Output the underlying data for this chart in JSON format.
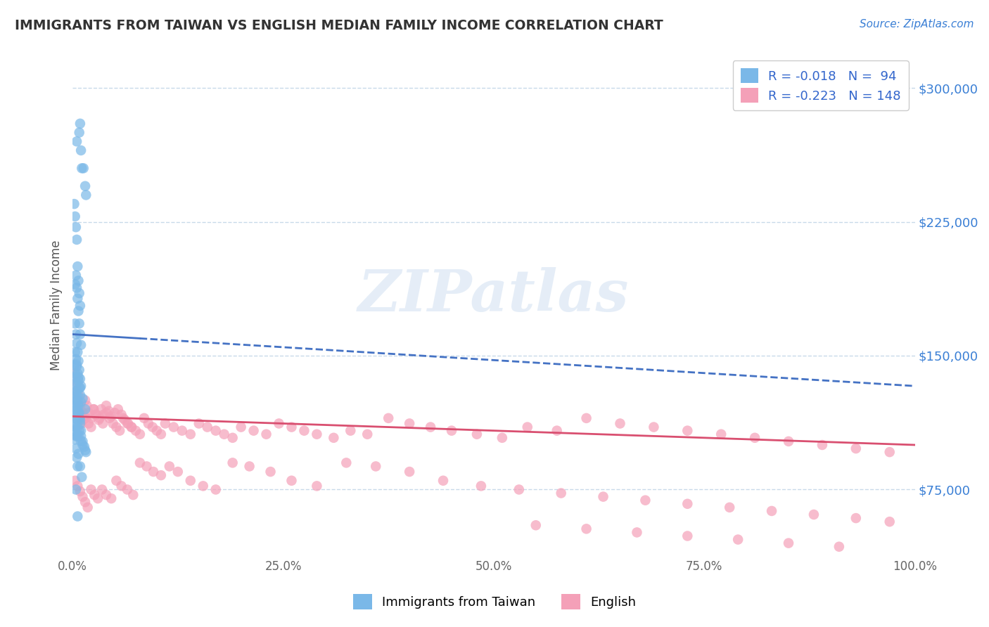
{
  "title": "IMMIGRANTS FROM TAIWAN VS ENGLISH MEDIAN FAMILY INCOME CORRELATION CHART",
  "source": "Source: ZipAtlas.com",
  "ylabel": "Median Family Income",
  "xlim": [
    0,
    1.0
  ],
  "ylim": [
    37500,
    318750
  ],
  "yticks": [
    75000,
    150000,
    225000,
    300000
  ],
  "xticks": [
    0.0,
    0.25,
    0.5,
    0.75,
    1.0
  ],
  "xtick_labels": [
    "0.0%",
    "25.0%",
    "50.0%",
    "75.0%",
    "100.0%"
  ],
  "blue_color": "#7ab8e8",
  "blue_line_color": "#4472c4",
  "pink_color": "#f4a0b8",
  "pink_line_color": "#d94f70",
  "legend_color": "#3366cc",
  "watermark": "ZIPatlas",
  "background_color": "#ffffff",
  "grid_color": "#c8daea",
  "title_color": "#333333",
  "ylabel_color": "#555555",
  "ytick_color": "#3a7fd5",
  "blue_trend_x0": 0.0,
  "blue_trend_y0": 162000,
  "blue_trend_x1": 1.0,
  "blue_trend_y1": 133000,
  "pink_trend_x0": 0.0,
  "pink_trend_y0": 116000,
  "pink_trend_x1": 1.0,
  "pink_trend_y1": 100000,
  "blue_scatter_x": [
    0.005,
    0.008,
    0.009,
    0.01,
    0.011,
    0.013,
    0.015,
    0.016,
    0.002,
    0.003,
    0.004,
    0.005,
    0.006,
    0.007,
    0.008,
    0.009,
    0.003,
    0.004,
    0.005,
    0.006,
    0.007,
    0.008,
    0.009,
    0.01,
    0.003,
    0.004,
    0.005,
    0.006,
    0.007,
    0.008,
    0.009,
    0.01,
    0.003,
    0.004,
    0.005,
    0.006,
    0.007,
    0.008,
    0.009,
    0.01,
    0.002,
    0.003,
    0.004,
    0.005,
    0.006,
    0.007,
    0.008,
    0.009,
    0.003,
    0.004,
    0.005,
    0.006,
    0.007,
    0.008,
    0.009,
    0.01,
    0.003,
    0.004,
    0.005,
    0.006,
    0.007,
    0.01,
    0.012,
    0.015,
    0.002,
    0.003,
    0.004,
    0.005,
    0.003,
    0.004,
    0.005,
    0.008,
    0.01,
    0.012,
    0.014,
    0.016,
    0.005,
    0.007,
    0.009,
    0.012,
    0.015,
    0.002,
    0.003,
    0.004,
    0.005,
    0.006,
    0.002,
    0.003,
    0.004,
    0.007,
    0.009,
    0.011,
    0.004,
    0.006
  ],
  "blue_scatter_y": [
    270000,
    275000,
    280000,
    265000,
    255000,
    255000,
    245000,
    240000,
    235000,
    228000,
    222000,
    215000,
    200000,
    192000,
    185000,
    178000,
    190000,
    195000,
    188000,
    182000,
    175000,
    168000,
    162000,
    156000,
    168000,
    162000,
    157000,
    152000,
    147000,
    142000,
    137000,
    133000,
    152000,
    148000,
    144000,
    140000,
    136000,
    132000,
    128000,
    124000,
    145000,
    140000,
    135000,
    130000,
    125000,
    122000,
    118000,
    114000,
    138000,
    133000,
    128000,
    123000,
    118000,
    115000,
    112000,
    108000,
    125000,
    120000,
    115000,
    110000,
    105000,
    102000,
    100000,
    97000,
    120000,
    115000,
    110000,
    105000,
    130000,
    125000,
    120000,
    108000,
    105000,
    102000,
    99000,
    96000,
    145000,
    138000,
    132000,
    126000,
    120000,
    108000,
    103000,
    98000,
    93000,
    88000,
    115000,
    110000,
    105000,
    95000,
    88000,
    82000,
    75000,
    60000
  ],
  "pink_scatter_x": [
    0.003,
    0.005,
    0.007,
    0.009,
    0.011,
    0.013,
    0.015,
    0.017,
    0.019,
    0.022,
    0.025,
    0.028,
    0.031,
    0.034,
    0.037,
    0.04,
    0.043,
    0.046,
    0.05,
    0.054,
    0.058,
    0.062,
    0.066,
    0.07,
    0.003,
    0.005,
    0.007,
    0.009,
    0.011,
    0.013,
    0.016,
    0.019,
    0.022,
    0.025,
    0.028,
    0.032,
    0.036,
    0.04,
    0.044,
    0.048,
    0.052,
    0.056,
    0.06,
    0.065,
    0.07,
    0.075,
    0.08,
    0.085,
    0.09,
    0.095,
    0.1,
    0.105,
    0.11,
    0.12,
    0.13,
    0.14,
    0.15,
    0.16,
    0.17,
    0.18,
    0.19,
    0.2,
    0.215,
    0.23,
    0.245,
    0.26,
    0.275,
    0.29,
    0.31,
    0.33,
    0.35,
    0.375,
    0.4,
    0.425,
    0.45,
    0.48,
    0.51,
    0.54,
    0.575,
    0.61,
    0.65,
    0.69,
    0.73,
    0.77,
    0.81,
    0.85,
    0.89,
    0.93,
    0.97,
    0.003,
    0.006,
    0.009,
    0.012,
    0.015,
    0.018,
    0.022,
    0.026,
    0.03,
    0.035,
    0.04,
    0.046,
    0.052,
    0.058,
    0.065,
    0.072,
    0.08,
    0.088,
    0.096,
    0.105,
    0.115,
    0.125,
    0.14,
    0.155,
    0.17,
    0.19,
    0.21,
    0.235,
    0.26,
    0.29,
    0.325,
    0.36,
    0.4,
    0.44,
    0.485,
    0.53,
    0.58,
    0.63,
    0.68,
    0.73,
    0.78,
    0.83,
    0.88,
    0.93,
    0.97,
    0.55,
    0.61,
    0.67,
    0.73,
    0.79,
    0.85,
    0.91
  ],
  "pink_scatter_y": [
    140000,
    135000,
    128000,
    122000,
    118000,
    114000,
    125000,
    122000,
    118000,
    115000,
    120000,
    117000,
    114000,
    120000,
    117000,
    122000,
    119000,
    116000,
    118000,
    120000,
    117000,
    114000,
    112000,
    110000,
    130000,
    125000,
    120000,
    115000,
    112000,
    118000,
    115000,
    112000,
    110000,
    120000,
    117000,
    115000,
    112000,
    118000,
    115000,
    112000,
    110000,
    108000,
    115000,
    112000,
    110000,
    108000,
    106000,
    115000,
    112000,
    110000,
    108000,
    106000,
    112000,
    110000,
    108000,
    106000,
    112000,
    110000,
    108000,
    106000,
    104000,
    110000,
    108000,
    106000,
    112000,
    110000,
    108000,
    106000,
    104000,
    108000,
    106000,
    115000,
    112000,
    110000,
    108000,
    106000,
    104000,
    110000,
    108000,
    115000,
    112000,
    110000,
    108000,
    106000,
    104000,
    102000,
    100000,
    98000,
    96000,
    80000,
    77000,
    74000,
    71000,
    68000,
    65000,
    75000,
    72000,
    70000,
    75000,
    72000,
    70000,
    80000,
    77000,
    75000,
    72000,
    90000,
    88000,
    85000,
    83000,
    88000,
    85000,
    80000,
    77000,
    75000,
    90000,
    88000,
    85000,
    80000,
    77000,
    90000,
    88000,
    85000,
    80000,
    77000,
    75000,
    73000,
    71000,
    69000,
    67000,
    65000,
    63000,
    61000,
    59000,
    57000,
    55000,
    53000,
    51000,
    49000,
    47000,
    45000,
    43000
  ]
}
